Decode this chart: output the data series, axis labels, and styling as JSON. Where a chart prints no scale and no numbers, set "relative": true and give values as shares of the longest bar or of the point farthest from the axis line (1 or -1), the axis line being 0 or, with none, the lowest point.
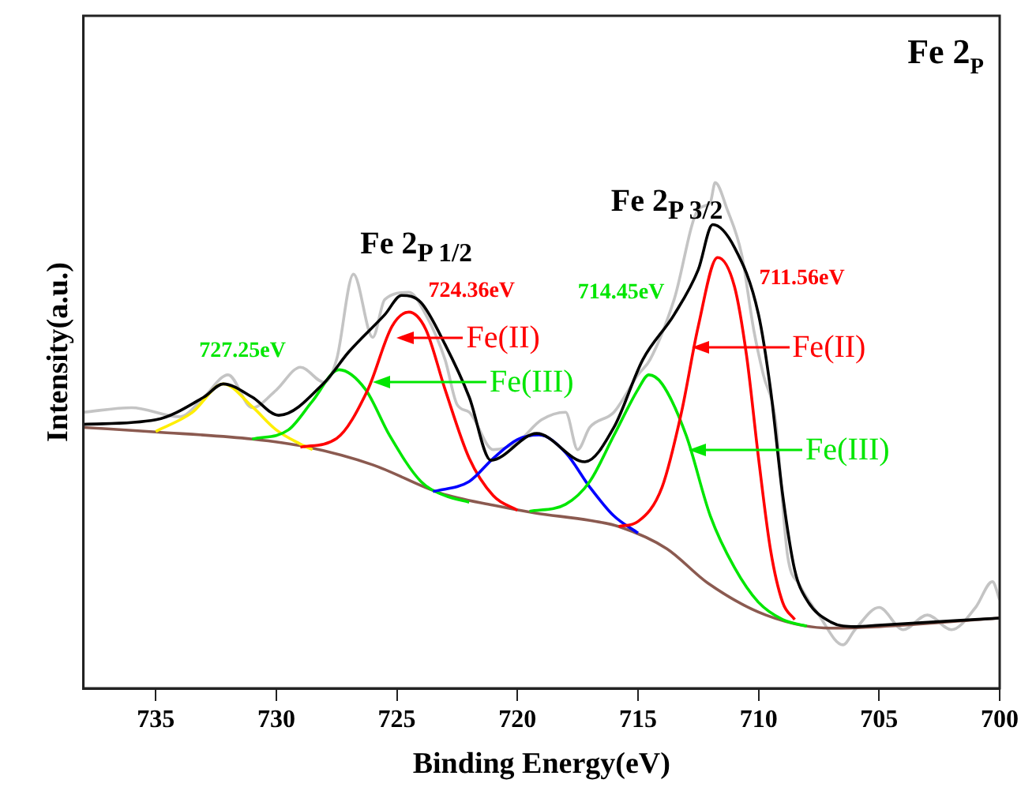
{
  "chart_data": {
    "type": "line",
    "title": "Fe 2$_{P}$",
    "xlabel": "Binding Energy(eV)",
    "ylabel": "Intensity(a.u.)",
    "relative": true,
    "xlim": [
      738,
      700
    ],
    "xticks": [
      735,
      730,
      725,
      720,
      715,
      710,
      705,
      700
    ],
    "series": [
      {
        "color": "#c4c4c4",
        "x": [
          738,
          736,
          734,
          733,
          732,
          731,
          730,
          729,
          728,
          727.5,
          726.8,
          726,
          725.5,
          724.5,
          723.8,
          723,
          722.5,
          722,
          721,
          720,
          719,
          718,
          717.5,
          717,
          716,
          715,
          714.5,
          713.5,
          712.5,
          712,
          711.8,
          711.3,
          710.7,
          710.2,
          709.8,
          709.3,
          708.8,
          708.3,
          707.5,
          706.5,
          706,
          705,
          704,
          703,
          702,
          701,
          700.3,
          700
        ],
        "values": [
          0.546,
          0.555,
          0.537,
          0.576,
          0.62,
          0.555,
          0.59,
          0.635,
          0.605,
          0.65,
          0.819,
          0.694,
          0.769,
          0.783,
          0.739,
          0.65,
          0.561,
          0.546,
          0.472,
          0.487,
          0.531,
          0.546,
          0.472,
          0.516,
          0.546,
          0.62,
          0.65,
          0.769,
          0.947,
          0.961,
          1.0,
          0.947,
          0.858,
          0.709,
          0.62,
          0.531,
          0.264,
          0.205,
          0.145,
          0.086,
          0.116,
          0.16,
          0.116,
          0.145,
          0.116,
          0.16,
          0.211,
          0.175
        ]
      },
      {
        "color": "#8b5a50",
        "x": [
          738,
          735,
          731,
          728.8,
          726,
          723.2,
          721,
          719.3,
          717,
          715.8,
          713.8,
          712.1,
          709.7,
          707,
          705,
          700
        ],
        "values": [
          0.516,
          0.507,
          0.493,
          0.478,
          0.442,
          0.386,
          0.362,
          0.347,
          0.332,
          0.32,
          0.276,
          0.208,
          0.145,
          0.119,
          0.122,
          0.139
        ]
      },
      {
        "color": "#ffee00",
        "x": [
          735,
          733.5,
          732.2,
          731,
          730,
          729,
          728.5
        ],
        "values": [
          0.508,
          0.545,
          0.602,
          0.557,
          0.511,
          0.483,
          0.472
        ]
      },
      {
        "color": "#00e600",
        "x": [
          731,
          729.5,
          728.5,
          727.4,
          726.3,
          725.3,
          724,
          723,
          722
        ],
        "values": [
          0.493,
          0.511,
          0.568,
          0.63,
          0.591,
          0.5,
          0.409,
          0.381,
          0.368
        ]
      },
      {
        "color": "#ff0000",
        "x": [
          729,
          727.5,
          726.2,
          725.2,
          724.5,
          723.8,
          723,
          722,
          721,
          720
        ],
        "values": [
          0.477,
          0.494,
          0.591,
          0.716,
          0.744,
          0.71,
          0.591,
          0.455,
          0.381,
          0.352
        ]
      },
      {
        "color": "#0000ff",
        "x": [
          723.5,
          722,
          721,
          720,
          719.1,
          718,
          717,
          716,
          715
        ],
        "values": [
          0.389,
          0.409,
          0.455,
          0.492,
          0.501,
          0.466,
          0.398,
          0.341,
          0.307
        ]
      },
      {
        "color": "#00e600",
        "x": [
          719.5,
          718,
          717,
          716,
          715,
          714.55,
          714,
          713,
          712,
          711,
          710,
          709,
          708
        ],
        "values": [
          0.35,
          0.364,
          0.409,
          0.5,
          0.591,
          0.62,
          0.602,
          0.5,
          0.341,
          0.239,
          0.17,
          0.136,
          0.123
        ]
      },
      {
        "color": "#ff0000",
        "x": [
          715.8,
          715,
          714,
          713.2,
          712.5,
          711.7,
          711,
          710.5,
          710,
          709.5,
          709,
          708.5
        ],
        "values": [
          0.32,
          0.33,
          0.398,
          0.545,
          0.716,
          0.852,
          0.795,
          0.659,
          0.455,
          0.273,
          0.17,
          0.136
        ]
      },
      {
        "color": "#000000",
        "x": [
          738,
          735,
          733,
          732.2,
          731,
          729.9,
          728,
          727,
          725.5,
          724.8,
          724,
          723,
          722,
          721.1,
          719.2,
          717.2,
          716,
          714.8,
          713.5,
          712.5,
          711.9,
          711,
          710,
          709.5,
          709,
          708.5,
          708,
          707,
          706,
          705,
          700
        ],
        "values": [
          0.522,
          0.531,
          0.576,
          0.602,
          0.576,
          0.54,
          0.605,
          0.665,
          0.739,
          0.777,
          0.763,
          0.68,
          0.576,
          0.451,
          0.504,
          0.448,
          0.516,
          0.65,
          0.739,
          0.828,
          0.917,
          0.872,
          0.739,
          0.59,
          0.383,
          0.234,
          0.175,
          0.131,
          0.122,
          0.125,
          0.139
        ]
      }
    ],
    "annotations": [
      "Fe 2$_{P 1/2}$",
      "Fe 2$_{P 3/2}$",
      "727.25eV",
      "724.36eV",
      "714.45eV",
      "711.56eV",
      "Fe(II)",
      "Fe(III)",
      "Fe(II)",
      "Fe(III)"
    ]
  }
}
